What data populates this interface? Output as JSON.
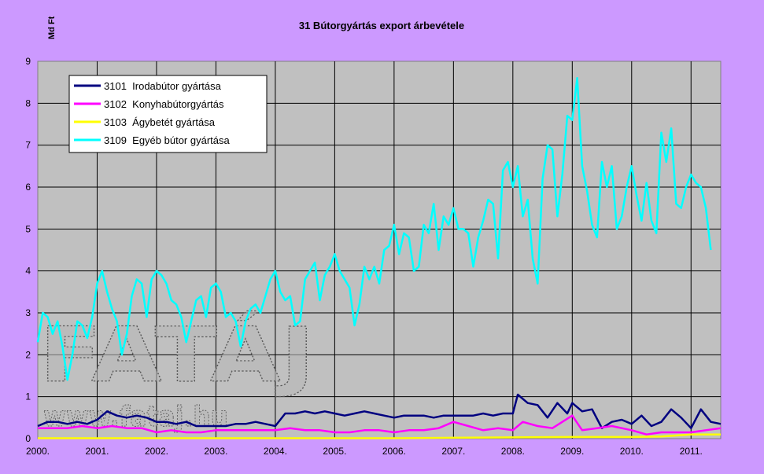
{
  "chart_data": {
    "type": "line",
    "title": "31 Bútorgyártás export árbevétele",
    "ylabel": "Md Ft",
    "xlabel": "",
    "ylim": [
      0,
      9
    ],
    "yticks": [
      "0",
      "1",
      "2",
      "3",
      "4",
      "5",
      "6",
      "7",
      "8",
      "9"
    ],
    "x_start": "2000-01",
    "x_end": "2011-07",
    "xticks": [
      "2000.",
      "2001.",
      "2002.",
      "2003.",
      "2004.",
      "2005.",
      "2006.",
      "2007.",
      "2008.",
      "2009.",
      "2010.",
      "2011."
    ],
    "grid": true,
    "legend_position": "top-left",
    "plot_background": "#c0c0c0",
    "page_background": "#cc99ff",
    "series": [
      {
        "name": "3101  Irodabútor gyártása",
        "color": "#000080",
        "points": [
          [
            "2000-01",
            0.3
          ],
          [
            "2000-03",
            0.4
          ],
          [
            "2000-05",
            0.4
          ],
          [
            "2000-07",
            0.35
          ],
          [
            "2000-09",
            0.4
          ],
          [
            "2000-11",
            0.35
          ],
          [
            "2001-01",
            0.45
          ],
          [
            "2001-03",
            0.65
          ],
          [
            "2001-05",
            0.55
          ],
          [
            "2001-07",
            0.5
          ],
          [
            "2001-09",
            0.55
          ],
          [
            "2001-11",
            0.5
          ],
          [
            "2002-01",
            0.4
          ],
          [
            "2002-03",
            0.4
          ],
          [
            "2002-05",
            0.35
          ],
          [
            "2002-07",
            0.4
          ],
          [
            "2002-09",
            0.3
          ],
          [
            "2002-11",
            0.3
          ],
          [
            "2003-01",
            0.3
          ],
          [
            "2003-03",
            0.3
          ],
          [
            "2003-05",
            0.35
          ],
          [
            "2003-07",
            0.35
          ],
          [
            "2003-09",
            0.4
          ],
          [
            "2003-11",
            0.35
          ],
          [
            "2004-01",
            0.3
          ],
          [
            "2004-03",
            0.6
          ],
          [
            "2004-05",
            0.6
          ],
          [
            "2004-07",
            0.65
          ],
          [
            "2004-09",
            0.6
          ],
          [
            "2004-11",
            0.65
          ],
          [
            "2005-01",
            0.6
          ],
          [
            "2005-03",
            0.55
          ],
          [
            "2005-05",
            0.6
          ],
          [
            "2005-07",
            0.65
          ],
          [
            "2005-09",
            0.6
          ],
          [
            "2005-11",
            0.55
          ],
          [
            "2006-01",
            0.5
          ],
          [
            "2006-03",
            0.55
          ],
          [
            "2006-05",
            0.55
          ],
          [
            "2006-07",
            0.55
          ],
          [
            "2006-09",
            0.5
          ],
          [
            "2006-11",
            0.55
          ],
          [
            "2007-01",
            0.55
          ],
          [
            "2007-03",
            0.55
          ],
          [
            "2007-05",
            0.55
          ],
          [
            "2007-07",
            0.6
          ],
          [
            "2007-09",
            0.55
          ],
          [
            "2007-11",
            0.6
          ],
          [
            "2008-01",
            0.6
          ],
          [
            "2008-02",
            1.05
          ],
          [
            "2008-04",
            0.85
          ],
          [
            "2008-06",
            0.8
          ],
          [
            "2008-08",
            0.5
          ],
          [
            "2008-10",
            0.85
          ],
          [
            "2008-12",
            0.6
          ],
          [
            "2009-01",
            0.85
          ],
          [
            "2009-03",
            0.65
          ],
          [
            "2009-05",
            0.7
          ],
          [
            "2009-07",
            0.25
          ],
          [
            "2009-09",
            0.4
          ],
          [
            "2009-11",
            0.45
          ],
          [
            "2010-01",
            0.35
          ],
          [
            "2010-03",
            0.55
          ],
          [
            "2010-05",
            0.3
          ],
          [
            "2010-07",
            0.4
          ],
          [
            "2010-09",
            0.7
          ],
          [
            "2010-11",
            0.5
          ],
          [
            "2011-01",
            0.25
          ],
          [
            "2011-03",
            0.7
          ],
          [
            "2011-05",
            0.4
          ],
          [
            "2011-07",
            0.35
          ]
        ]
      },
      {
        "name": "3102  Konyhabútorgyártás",
        "color": "#ff00ff",
        "points": [
          [
            "2000-01",
            0.25
          ],
          [
            "2000-04",
            0.25
          ],
          [
            "2000-07",
            0.25
          ],
          [
            "2000-10",
            0.3
          ],
          [
            "2001-01",
            0.25
          ],
          [
            "2001-04",
            0.3
          ],
          [
            "2001-07",
            0.25
          ],
          [
            "2001-10",
            0.25
          ],
          [
            "2002-01",
            0.15
          ],
          [
            "2002-04",
            0.2
          ],
          [
            "2002-07",
            0.15
          ],
          [
            "2002-10",
            0.15
          ],
          [
            "2003-01",
            0.2
          ],
          [
            "2003-04",
            0.2
          ],
          [
            "2003-07",
            0.2
          ],
          [
            "2003-10",
            0.2
          ],
          [
            "2004-01",
            0.2
          ],
          [
            "2004-04",
            0.25
          ],
          [
            "2004-07",
            0.2
          ],
          [
            "2004-10",
            0.2
          ],
          [
            "2005-01",
            0.15
          ],
          [
            "2005-04",
            0.15
          ],
          [
            "2005-07",
            0.2
          ],
          [
            "2005-10",
            0.2
          ],
          [
            "2006-01",
            0.15
          ],
          [
            "2006-04",
            0.2
          ],
          [
            "2006-07",
            0.2
          ],
          [
            "2006-10",
            0.25
          ],
          [
            "2007-01",
            0.4
          ],
          [
            "2007-04",
            0.3
          ],
          [
            "2007-07",
            0.2
          ],
          [
            "2007-10",
            0.25
          ],
          [
            "2008-01",
            0.2
          ],
          [
            "2008-03",
            0.4
          ],
          [
            "2008-06",
            0.3
          ],
          [
            "2008-09",
            0.25
          ],
          [
            "2009-01",
            0.55
          ],
          [
            "2009-03",
            0.2
          ],
          [
            "2009-06",
            0.25
          ],
          [
            "2009-09",
            0.3
          ],
          [
            "2010-01",
            0.2
          ],
          [
            "2010-04",
            0.1
          ],
          [
            "2010-07",
            0.15
          ],
          [
            "2010-10",
            0.15
          ],
          [
            "2011-01",
            0.15
          ],
          [
            "2011-04",
            0.2
          ],
          [
            "2011-07",
            0.25
          ]
        ]
      },
      {
        "name": "3103  Ágybetét gyártása",
        "color": "#ffff00",
        "points": [
          [
            "2000-01",
            0.01
          ],
          [
            "2002-01",
            0.01
          ],
          [
            "2004-01",
            0.01
          ],
          [
            "2006-01",
            0.01
          ],
          [
            "2007-01",
            0.02
          ],
          [
            "2008-01",
            0.03
          ],
          [
            "2009-01",
            0.04
          ],
          [
            "2010-01",
            0.04
          ],
          [
            "2010-07",
            0.05
          ],
          [
            "2011-01",
            0.1
          ],
          [
            "2011-07",
            0.1
          ]
        ]
      },
      {
        "name": "3109  Egyéb bútor gyártása",
        "color": "#00ffff",
        "points": [
          [
            "2000-01",
            2.3
          ],
          [
            "2000-02",
            3.0
          ],
          [
            "2000-03",
            2.9
          ],
          [
            "2000-04",
            2.5
          ],
          [
            "2000-05",
            2.8
          ],
          [
            "2000-06",
            2.2
          ],
          [
            "2000-07",
            1.4
          ],
          [
            "2000-08",
            2.0
          ],
          [
            "2000-09",
            2.8
          ],
          [
            "2000-10",
            2.7
          ],
          [
            "2000-11",
            2.4
          ],
          [
            "2000-12",
            2.9
          ],
          [
            "2001-01",
            3.7
          ],
          [
            "2001-02",
            4.0
          ],
          [
            "2001-03",
            3.5
          ],
          [
            "2001-04",
            3.1
          ],
          [
            "2001-05",
            2.8
          ],
          [
            "2001-06",
            2.0
          ],
          [
            "2001-07",
            2.5
          ],
          [
            "2001-08",
            3.4
          ],
          [
            "2001-09",
            3.8
          ],
          [
            "2001-10",
            3.7
          ],
          [
            "2001-11",
            2.9
          ],
          [
            "2001-12",
            3.8
          ],
          [
            "2002-01",
            4.0
          ],
          [
            "2002-02",
            3.9
          ],
          [
            "2002-03",
            3.7
          ],
          [
            "2002-04",
            3.3
          ],
          [
            "2002-05",
            3.2
          ],
          [
            "2002-06",
            2.9
          ],
          [
            "2002-07",
            2.3
          ],
          [
            "2002-08",
            2.8
          ],
          [
            "2002-09",
            3.3
          ],
          [
            "2002-10",
            3.4
          ],
          [
            "2002-11",
            2.9
          ],
          [
            "2002-12",
            3.6
          ],
          [
            "2003-01",
            3.7
          ],
          [
            "2003-02",
            3.5
          ],
          [
            "2003-03",
            2.9
          ],
          [
            "2003-04",
            3.0
          ],
          [
            "2003-05",
            2.8
          ],
          [
            "2003-06",
            2.2
          ],
          [
            "2003-07",
            2.8
          ],
          [
            "2003-08",
            3.1
          ],
          [
            "2003-09",
            3.2
          ],
          [
            "2003-10",
            3.0
          ],
          [
            "2003-11",
            3.4
          ],
          [
            "2003-12",
            3.8
          ],
          [
            "2004-01",
            4.0
          ],
          [
            "2004-02",
            3.5
          ],
          [
            "2004-03",
            3.3
          ],
          [
            "2004-04",
            3.4
          ],
          [
            "2004-05",
            2.7
          ],
          [
            "2004-06",
            2.8
          ],
          [
            "2004-07",
            3.8
          ],
          [
            "2004-08",
            4.0
          ],
          [
            "2004-09",
            4.2
          ],
          [
            "2004-10",
            3.3
          ],
          [
            "2004-11",
            3.9
          ],
          [
            "2004-12",
            4.1
          ],
          [
            "2005-01",
            4.4
          ],
          [
            "2005-02",
            4.0
          ],
          [
            "2005-03",
            3.8
          ],
          [
            "2005-04",
            3.6
          ],
          [
            "2005-05",
            2.7
          ],
          [
            "2005-06",
            3.2
          ],
          [
            "2005-07",
            4.1
          ],
          [
            "2005-08",
            3.8
          ],
          [
            "2005-09",
            4.1
          ],
          [
            "2005-10",
            3.7
          ],
          [
            "2005-11",
            4.5
          ],
          [
            "2005-12",
            4.6
          ],
          [
            "2006-01",
            5.1
          ],
          [
            "2006-02",
            4.4
          ],
          [
            "2006-03",
            4.9
          ],
          [
            "2006-04",
            4.8
          ],
          [
            "2006-05",
            4.0
          ],
          [
            "2006-06",
            4.1
          ],
          [
            "2006-07",
            5.1
          ],
          [
            "2006-08",
            4.9
          ],
          [
            "2006-09",
            5.6
          ],
          [
            "2006-10",
            4.5
          ],
          [
            "2006-11",
            5.3
          ],
          [
            "2006-12",
            5.1
          ],
          [
            "2007-01",
            5.5
          ],
          [
            "2007-02",
            5.0
          ],
          [
            "2007-03",
            5.0
          ],
          [
            "2007-04",
            4.9
          ],
          [
            "2007-05",
            4.1
          ],
          [
            "2007-06",
            4.8
          ],
          [
            "2007-07",
            5.2
          ],
          [
            "2007-08",
            5.7
          ],
          [
            "2007-09",
            5.6
          ],
          [
            "2007-10",
            4.3
          ],
          [
            "2007-11",
            6.4
          ],
          [
            "2007-12",
            6.6
          ],
          [
            "2008-01",
            6.0
          ],
          [
            "2008-02",
            6.5
          ],
          [
            "2008-03",
            5.3
          ],
          [
            "2008-04",
            5.7
          ],
          [
            "2008-05",
            4.3
          ],
          [
            "2008-06",
            3.7
          ],
          [
            "2008-07",
            6.2
          ],
          [
            "2008-08",
            7.0
          ],
          [
            "2008-09",
            6.9
          ],
          [
            "2008-10",
            5.3
          ],
          [
            "2008-11",
            6.3
          ],
          [
            "2008-12",
            7.7
          ],
          [
            "2009-01",
            7.6
          ],
          [
            "2009-02",
            8.6
          ],
          [
            "2009-03",
            6.5
          ],
          [
            "2009-04",
            5.9
          ],
          [
            "2009-05",
            5.1
          ],
          [
            "2009-06",
            4.8
          ],
          [
            "2009-07",
            6.6
          ],
          [
            "2009-08",
            6.0
          ],
          [
            "2009-09",
            6.5
          ],
          [
            "2009-10",
            5.0
          ],
          [
            "2009-11",
            5.3
          ],
          [
            "2009-12",
            6.0
          ],
          [
            "2010-01",
            6.5
          ],
          [
            "2010-02",
            5.8
          ],
          [
            "2010-03",
            5.2
          ],
          [
            "2010-04",
            6.1
          ],
          [
            "2010-05",
            5.2
          ],
          [
            "2010-06",
            4.9
          ],
          [
            "2010-07",
            7.3
          ],
          [
            "2010-08",
            6.6
          ],
          [
            "2010-09",
            7.4
          ],
          [
            "2010-10",
            5.6
          ],
          [
            "2010-11",
            5.5
          ],
          [
            "2010-12",
            6.0
          ],
          [
            "2011-01",
            6.3
          ],
          [
            "2011-02",
            6.1
          ],
          [
            "2011-03",
            6.0
          ],
          [
            "2011-04",
            5.5
          ],
          [
            "2011-05",
            4.5
          ]
        ]
      }
    ]
  },
  "watermark": {
    "big": "FATÁJ",
    "small": "www.fataj.hu"
  }
}
